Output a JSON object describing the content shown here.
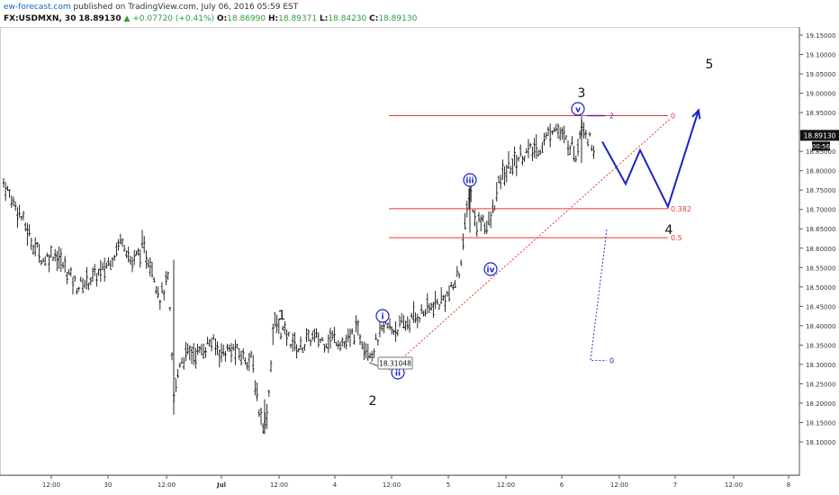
{
  "header": {
    "site": "ew-forecast.com",
    "published": "published on TradingView.com, July 06, 2016 05:59 EST",
    "symbol": "FX:USDMXN, 30",
    "last": "18.89130",
    "change": "+0.07720 (+0.41%)",
    "open_label": "O:",
    "open": "18.86990",
    "high_label": "H:",
    "high": "18.89371",
    "low_label": "L:",
    "low": "18.84230",
    "close_label": "C:",
    "close": "18.89130"
  },
  "chart_data": {
    "type": "candlestick",
    "symbol": "FX:USDMXN",
    "interval": "30",
    "ylim": [
      18.075,
      19.175
    ],
    "y_ticks": [
      "19.15000",
      "19.10000",
      "19.05000",
      "19.00000",
      "18.95000",
      "18.90000",
      "18.85000",
      "18.80000",
      "18.75000",
      "18.70000",
      "18.65000",
      "18.60000",
      "18.55000",
      "18.50000",
      "18.45000",
      "18.40000",
      "18.35000",
      "18.30000",
      "18.25000",
      "18.20000",
      "18.15000",
      "18.10000"
    ],
    "x_ticks": [
      "12:00",
      "30",
      "12:00",
      "Jul",
      "12:00",
      "4",
      "12:00",
      "5",
      "12:00",
      "6",
      "12:00",
      "7",
      "12:00",
      "8"
    ],
    "price_tag": "18.89130",
    "timer_tag": "00:56",
    "low_marker": "18.31048",
    "fib_levels": [
      {
        "label": "0",
        "price": 18.942
      },
      {
        "label": "0.382",
        "price": 18.702
      },
      {
        "label": "0.5",
        "price": 18.627
      }
    ],
    "wave_labels": {
      "major": [
        "1",
        "2",
        "3",
        "4",
        "5"
      ],
      "minor": [
        "i",
        "ii",
        "iii",
        "iv",
        "v"
      ],
      "projection_tag": "2",
      "blue_zero": "0"
    },
    "price_path": [
      [
        0,
        18.79
      ],
      [
        10,
        18.74
      ],
      [
        22,
        18.69
      ],
      [
        35,
        18.62
      ],
      [
        48,
        18.57
      ],
      [
        60,
        18.59
      ],
      [
        72,
        18.55
      ],
      [
        86,
        18.5
      ],
      [
        100,
        18.52
      ],
      [
        114,
        18.54
      ],
      [
        128,
        18.59
      ],
      [
        136,
        18.63
      ],
      [
        146,
        18.56
      ],
      [
        158,
        18.6
      ],
      [
        168,
        18.56
      ],
      [
        178,
        18.47
      ],
      [
        187,
        18.52
      ],
      [
        193,
        18.21
      ],
      [
        200,
        18.31
      ],
      [
        210,
        18.33
      ],
      [
        222,
        18.33
      ],
      [
        234,
        18.36
      ],
      [
        246,
        18.33
      ],
      [
        258,
        18.34
      ],
      [
        270,
        18.32
      ],
      [
        280,
        18.31
      ],
      [
        288,
        18.18
      ],
      [
        294,
        18.14
      ],
      [
        298,
        18.2
      ],
      [
        304,
        18.41
      ],
      [
        312,
        18.39
      ],
      [
        320,
        18.37
      ],
      [
        332,
        18.34
      ],
      [
        346,
        18.37
      ],
      [
        360,
        18.36
      ],
      [
        372,
        18.37
      ],
      [
        384,
        18.35
      ],
      [
        396,
        18.39
      ],
      [
        406,
        18.35
      ],
      [
        414,
        18.33
      ],
      [
        420,
        18.37
      ],
      [
        428,
        18.4
      ],
      [
        436,
        18.39
      ],
      [
        448,
        18.4
      ],
      [
        460,
        18.42
      ],
      [
        474,
        18.44
      ],
      [
        488,
        18.46
      ],
      [
        502,
        18.49
      ],
      [
        510,
        18.54
      ],
      [
        516,
        18.64
      ],
      [
        522,
        18.76
      ],
      [
        528,
        18.66
      ],
      [
        536,
        18.68
      ],
      [
        542,
        18.65
      ],
      [
        548,
        18.7
      ],
      [
        556,
        18.78
      ],
      [
        566,
        18.81
      ],
      [
        578,
        18.84
      ],
      [
        590,
        18.85
      ],
      [
        600,
        18.86
      ],
      [
        608,
        18.89
      ],
      [
        616,
        18.92
      ],
      [
        626,
        18.88
      ],
      [
        634,
        18.87
      ],
      [
        640,
        18.84
      ],
      [
        646,
        18.93
      ],
      [
        652,
        18.89
      ],
      [
        660,
        18.86
      ]
    ],
    "projection_path": [
      [
        669,
        18.875
      ],
      [
        695,
        18.766
      ],
      [
        711,
        18.853
      ],
      [
        742,
        18.707
      ],
      [
        776,
        18.956
      ]
    ]
  }
}
